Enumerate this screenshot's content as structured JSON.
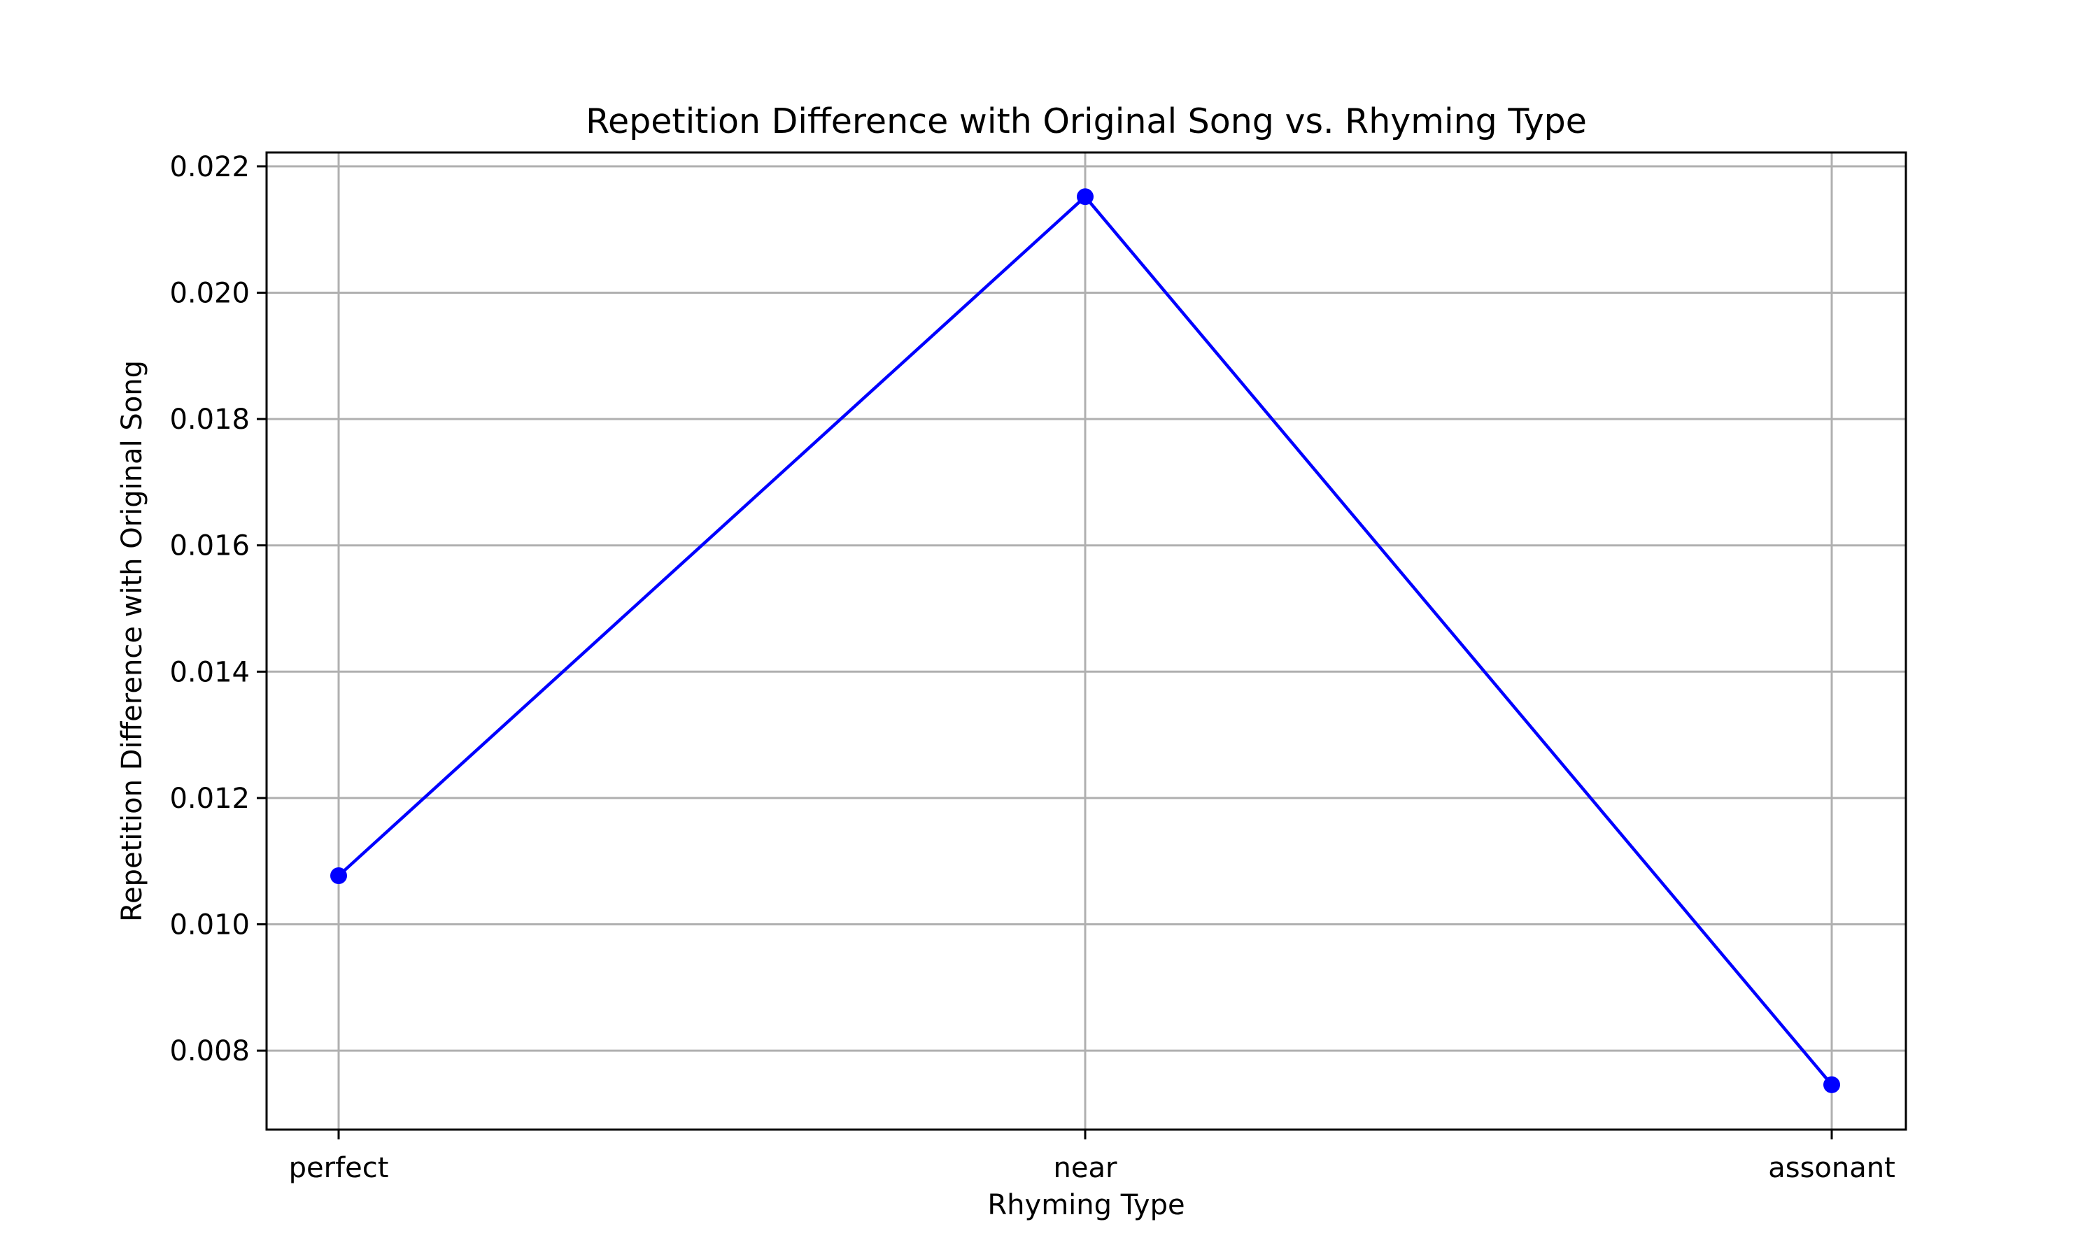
{
  "chart_data": {
    "type": "line",
    "title": "Repetition Difference with Original Song vs. Rhyming Type",
    "xlabel": "Rhyming Type",
    "ylabel": "Repetition Difference with Original Song",
    "categories": [
      "perfect",
      "near",
      "assonant"
    ],
    "series": [
      {
        "values": [
          0.01077,
          0.02152,
          0.00746
        ],
        "color": "#0000ff",
        "marker": "circle"
      }
    ],
    "ylim": [
      0.00675,
      0.02222
    ],
    "yticks": [
      "0.008",
      "0.010",
      "0.012",
      "0.014",
      "0.016",
      "0.018",
      "0.020",
      "0.022"
    ],
    "grid": true,
    "legend": "none"
  }
}
